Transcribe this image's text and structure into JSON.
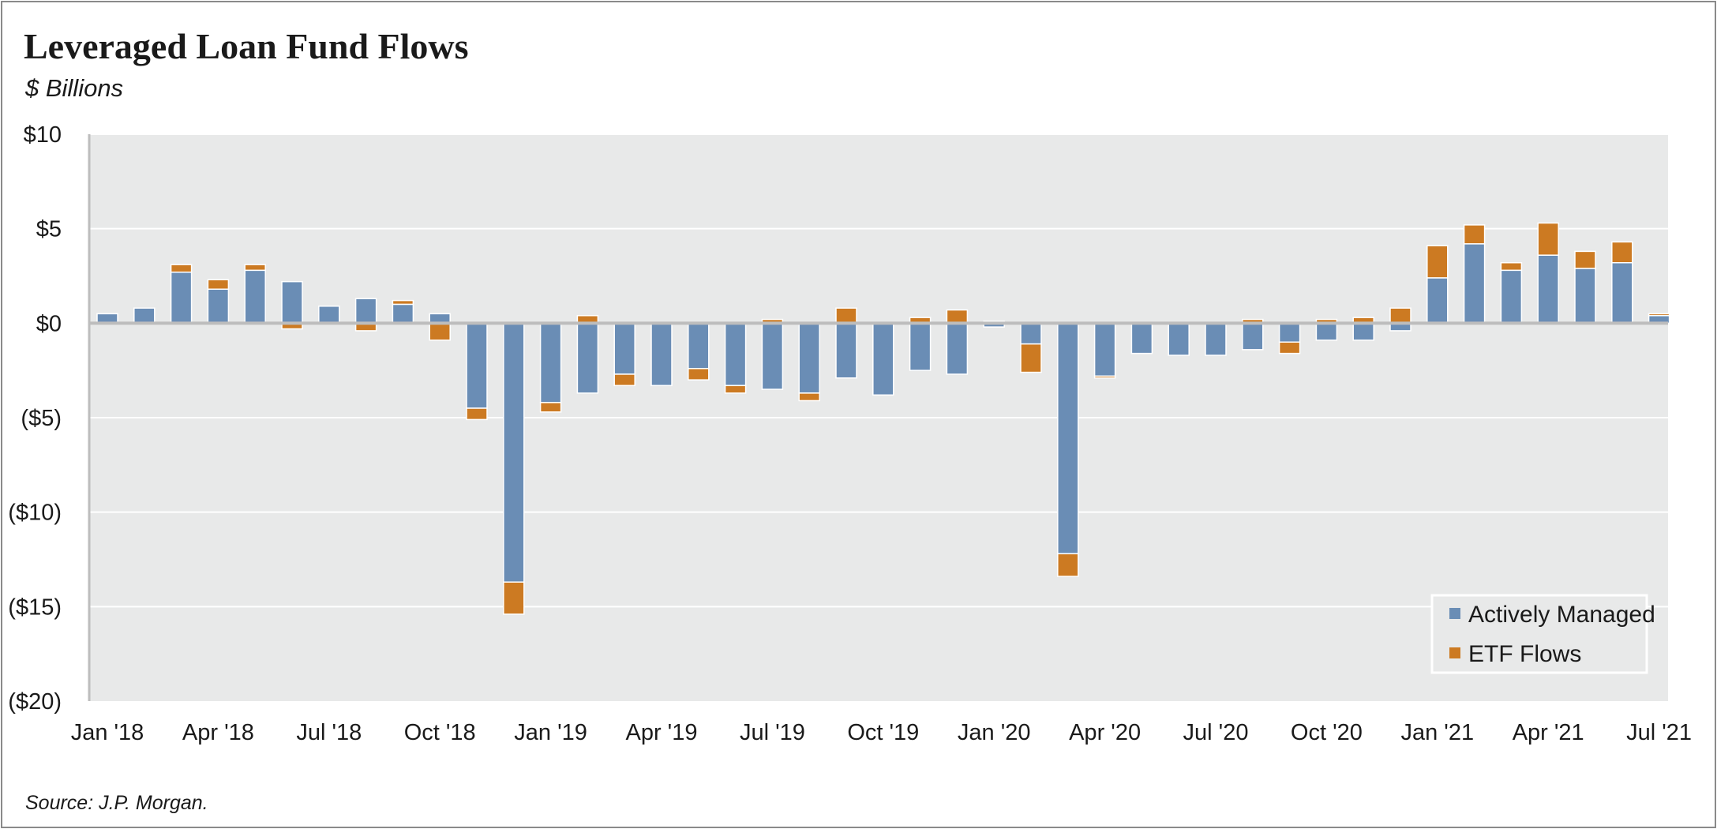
{
  "title": "Leveraged Loan Fund Flows",
  "subtitle": "$ Billions",
  "source": "Source: J.P. Morgan.",
  "colors": {
    "plot_background": "#e8e9e9",
    "actively_managed": "#6a8db5",
    "etf_flows": "#cc7a22",
    "zero_line": "#bdbdbd",
    "gridline": "#ffffff"
  },
  "chart_data": {
    "type": "bar",
    "stacked": true,
    "ylim": [
      -20,
      10
    ],
    "yticks": [
      10,
      5,
      0,
      -5,
      -10,
      -15,
      -20
    ],
    "ytick_labels": [
      "$10",
      "$5",
      "$0",
      "($5)",
      "($10)",
      "($15)",
      "($20)"
    ],
    "xtick_labels": [
      "Jan '18",
      "Apr '18",
      "Jul '18",
      "Oct '18",
      "Jan '19",
      "Apr '19",
      "Jul '19",
      "Oct '19",
      "Jan '20",
      "Apr '20",
      "Jul '20",
      "Oct '20",
      "Jan '21",
      "Apr '21",
      "Jul '21"
    ],
    "legend_position": "bottom-right",
    "grid": true,
    "categories": [
      "Jan-18",
      "Feb-18",
      "Mar-18",
      "Apr-18",
      "May-18",
      "Jun-18",
      "Jul-18",
      "Aug-18",
      "Sep-18",
      "Oct-18",
      "Nov-18",
      "Dec-18",
      "Jan-19",
      "Feb-19",
      "Mar-19",
      "Apr-19",
      "May-19",
      "Jun-19",
      "Jul-19",
      "Aug-19",
      "Sep-19",
      "Oct-19",
      "Nov-19",
      "Dec-19",
      "Jan-20",
      "Feb-20",
      "Mar-20",
      "Apr-20",
      "May-20",
      "Jun-20",
      "Jul-20",
      "Aug-20",
      "Sep-20",
      "Oct-20",
      "Nov-20",
      "Dec-20",
      "Jan-21",
      "Feb-21",
      "Mar-21",
      "Apr-21",
      "May-21",
      "Jun-21",
      "Jul-21"
    ],
    "series": [
      {
        "name": "Actively Managed",
        "values": [
          0.5,
          0.8,
          2.7,
          1.8,
          2.8,
          2.2,
          0.9,
          1.3,
          1.0,
          0.5,
          -4.5,
          -13.7,
          -4.2,
          -3.7,
          -2.7,
          -3.3,
          -2.4,
          -3.3,
          -3.5,
          -3.7,
          -2.9,
          -3.8,
          -2.5,
          -2.7,
          -0.2,
          -1.1,
          -12.2,
          -2.8,
          -1.6,
          -1.7,
          -1.7,
          -1.4,
          -1.0,
          -0.9,
          -0.9,
          -0.4,
          2.4,
          4.2,
          2.8,
          3.6,
          2.9,
          3.2,
          0.4
        ]
      },
      {
        "name": "ETF Flows",
        "values": [
          0.0,
          0.0,
          0.4,
          0.5,
          0.3,
          -0.3,
          0.0,
          -0.4,
          0.2,
          -0.9,
          -0.6,
          -1.7,
          -0.5,
          0.4,
          -0.6,
          0.0,
          -0.6,
          -0.4,
          0.2,
          -0.4,
          0.8,
          0.0,
          0.3,
          0.7,
          0.1,
          -1.5,
          -1.2,
          -0.1,
          0.0,
          0.0,
          0.0,
          0.2,
          -0.6,
          0.2,
          0.3,
          0.8,
          1.7,
          1.0,
          0.4,
          1.7,
          0.9,
          1.1,
          0.1
        ]
      }
    ]
  }
}
